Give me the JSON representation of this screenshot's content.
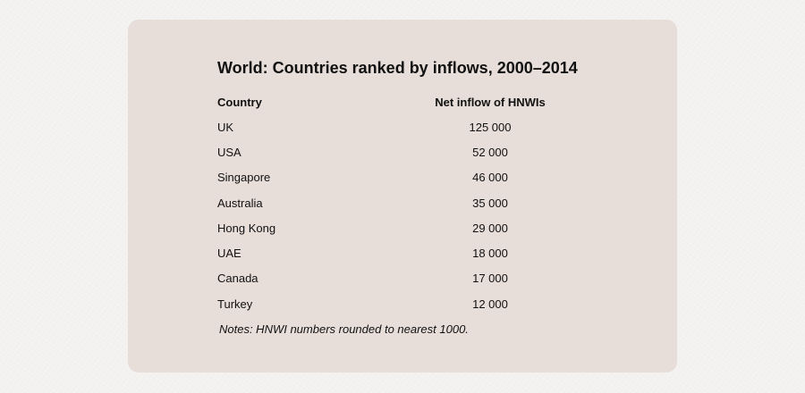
{
  "chart_data": {
    "type": "table",
    "title": "World: Countries ranked by inflows, 2000–2014",
    "columns": [
      "Country",
      "Net inflow of HNWIs"
    ],
    "rows": [
      {
        "country": "UK",
        "value": "125 000"
      },
      {
        "country": "USA",
        "value": "52 000"
      },
      {
        "country": "Singapore",
        "value": "46 000"
      },
      {
        "country": "Australia",
        "value": "35 000"
      },
      {
        "country": "Hong Kong",
        "value": "29 000"
      },
      {
        "country": "UAE",
        "value": "18 000"
      },
      {
        "country": "Canada",
        "value": "17 000"
      },
      {
        "country": "Turkey",
        "value": "12 000"
      }
    ],
    "notes": "Notes: HNWI numbers rounded to nearest 1000."
  }
}
